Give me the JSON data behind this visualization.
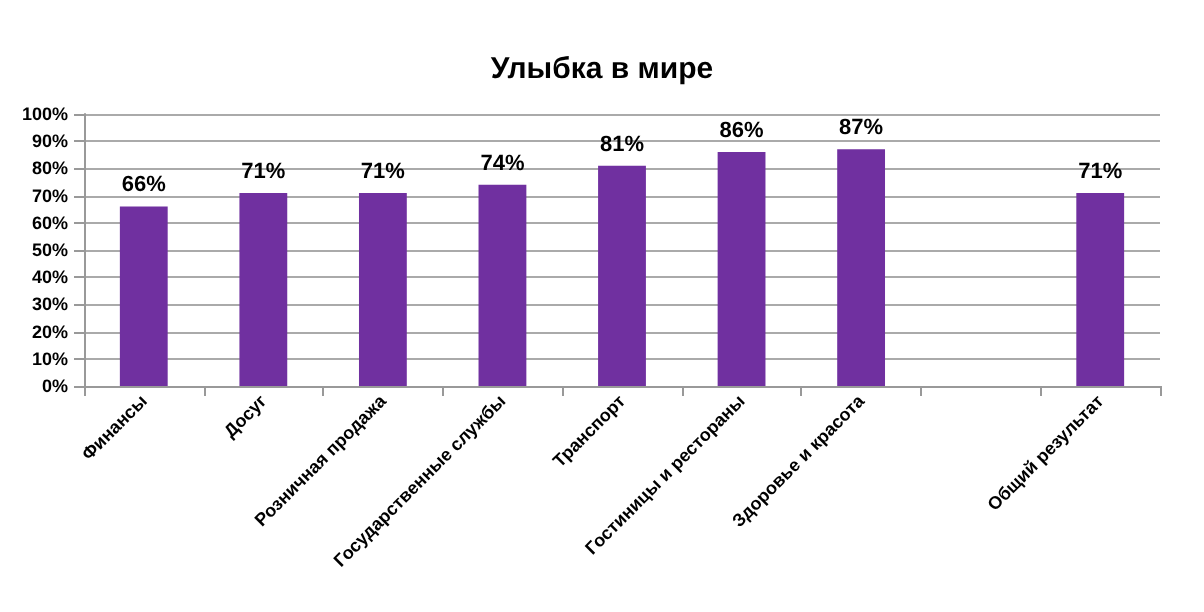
{
  "chart_data": {
    "type": "bar",
    "title": "Улыбка в мире",
    "categories": [
      "Финансы",
      "Досуг",
      "Розничная продажа",
      "Государственные службы",
      "Транспорт",
      "Гостиницы и рестораны",
      "Здоровье и красота",
      null,
      "Общий результат"
    ],
    "values": [
      66,
      71,
      71,
      74,
      81,
      86,
      87,
      null,
      71
    ],
    "value_labels": [
      "66%",
      "71%",
      "71%",
      "74%",
      "81%",
      "86%",
      "87%",
      null,
      "71%"
    ],
    "color": "#7030a0",
    "ylim": [
      0,
      100
    ],
    "yticks": [
      {
        "value": 0,
        "label": "0%"
      },
      {
        "value": 10,
        "label": "10%"
      },
      {
        "value": 20,
        "label": "20%"
      },
      {
        "value": 30,
        "label": "30%"
      },
      {
        "value": 40,
        "label": "40%"
      },
      {
        "value": 50,
        "label": "50%"
      },
      {
        "value": 60,
        "label": "60%"
      },
      {
        "value": 70,
        "label": "70%"
      },
      {
        "value": 80,
        "label": "80%"
      },
      {
        "value": 90,
        "label": "90%"
      },
      {
        "value": 100,
        "label": "100%"
      }
    ],
    "grid": "y"
  }
}
